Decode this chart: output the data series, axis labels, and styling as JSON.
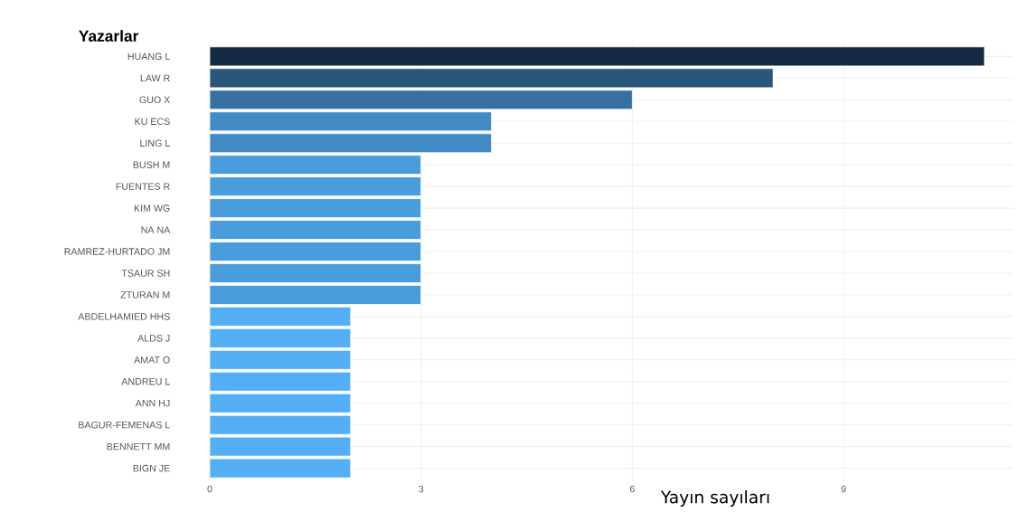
{
  "chart_data": {
    "type": "bar",
    "orientation": "horizontal",
    "ylabel": "Yazarlar",
    "xlabel": "Yayın sayıları",
    "categories": [
      "HUANG L",
      "LAW R",
      "GUO X",
      "KU ECS",
      "LING L",
      "BUSH M",
      "FUENTES R",
      "KIM WG",
      "NA NA",
      "RAMREZ-HURTADO JM",
      "TSAUR SH",
      "ZTURAN M",
      "ABDELHAMIED HHS",
      "ALDS J",
      "AMAT O",
      "ANDREU L",
      "ANN HJ",
      "BAGUR-FEMENAS L",
      "BENNETT MM",
      "BIGN JE"
    ],
    "values": [
      11,
      8,
      6,
      4,
      4,
      3,
      3,
      3,
      3,
      3,
      3,
      3,
      2,
      2,
      2,
      2,
      2,
      2,
      2,
      2
    ],
    "colors": [
      "#152a43",
      "#28557a",
      "#3670a0",
      "#428ac6",
      "#428ac6",
      "#4a9ddc",
      "#4a9ddc",
      "#4a9ddc",
      "#4a9ddc",
      "#4a9ddc",
      "#4a9ddc",
      "#4a9ddc",
      "#54aef3",
      "#54aef3",
      "#54aef3",
      "#54aef3",
      "#54aef3",
      "#54aef3",
      "#54aef3",
      "#54aef3"
    ],
    "xlim": [
      0,
      11.4
    ],
    "xticks": [
      0,
      3,
      6,
      9
    ],
    "grid": true
  }
}
